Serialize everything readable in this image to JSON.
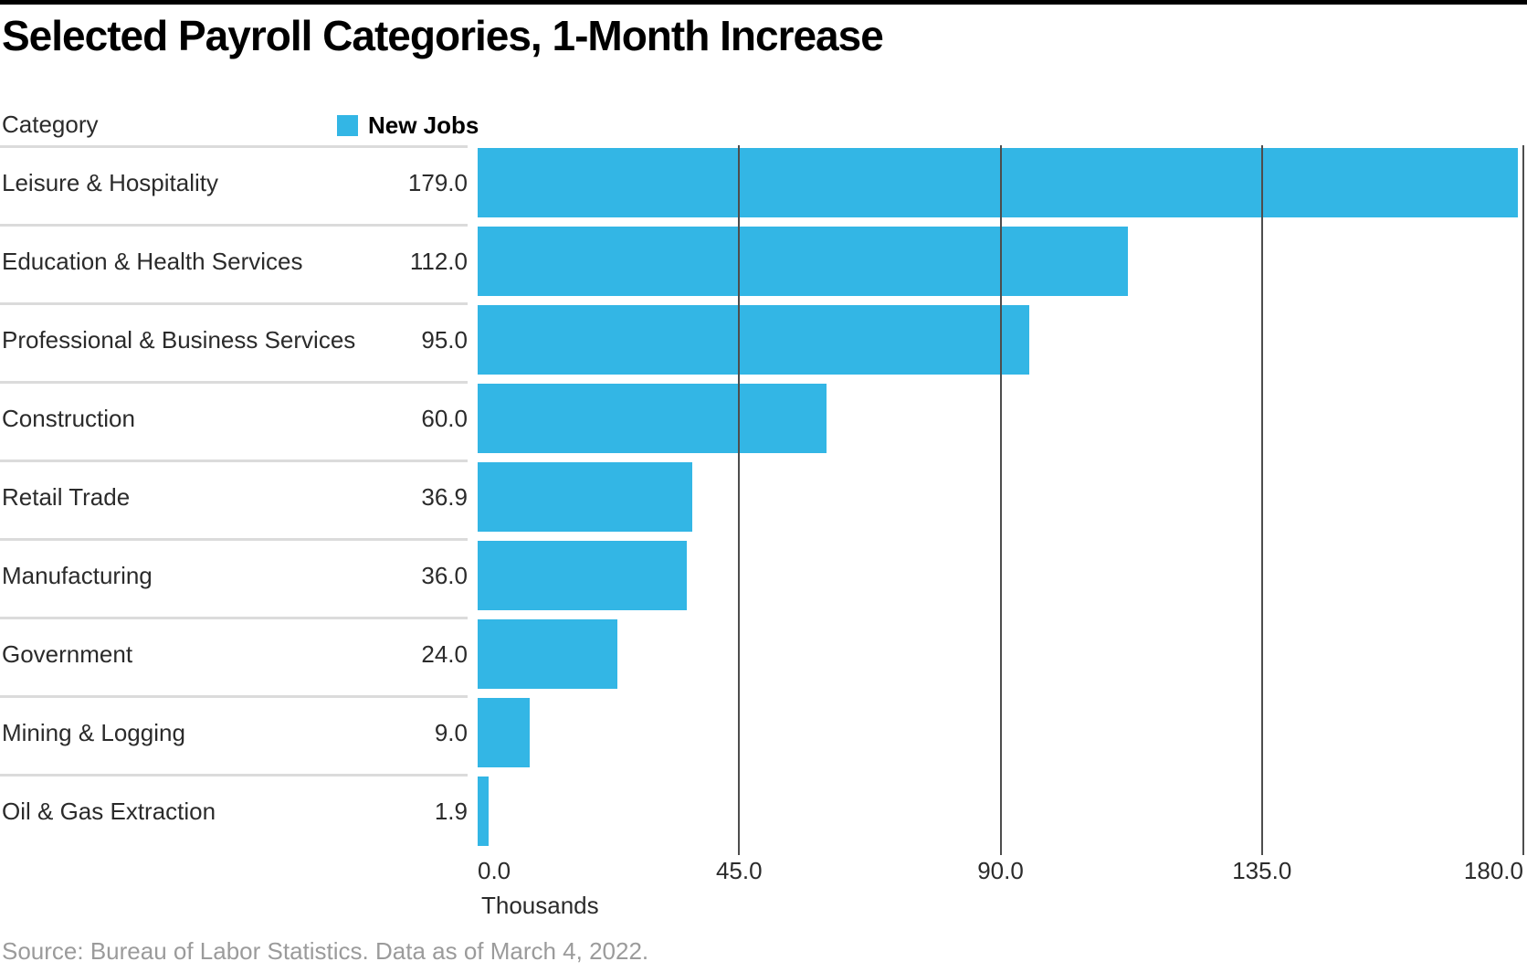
{
  "colors": {
    "bar": "#33B6E5",
    "grid_line": "#4d4d4d",
    "separator": "#dbdbdb",
    "text": "#2b2b2b",
    "source_text": "#9b9b9b",
    "top_bar": "#000000"
  },
  "chart_data": {
    "type": "bar",
    "orientation": "horizontal",
    "title": "Selected Payroll Categories, 1-Month Increase",
    "category_column_header": "Category",
    "legend": {
      "label": "New Jobs",
      "color": "#33B6E5",
      "position": "top"
    },
    "categories": [
      "Leisure & Hospitality",
      "Education & Health Services",
      "Professional & Business Services",
      "Construction",
      "Retail Trade",
      "Manufacturing",
      "Government",
      "Mining & Logging",
      "Oil & Gas Extraction"
    ],
    "values": [
      179.0,
      112.0,
      95.0,
      60.0,
      36.9,
      36.0,
      24.0,
      9.0,
      1.9
    ],
    "value_label_decimals": 1,
    "xlabel": "Thousands",
    "xlim": [
      0,
      180
    ],
    "xticks": [
      0,
      45,
      90,
      135,
      180
    ],
    "grid": "vertical",
    "source": "Source: Bureau of Labor Statistics. Data as of March 4, 2022."
  }
}
